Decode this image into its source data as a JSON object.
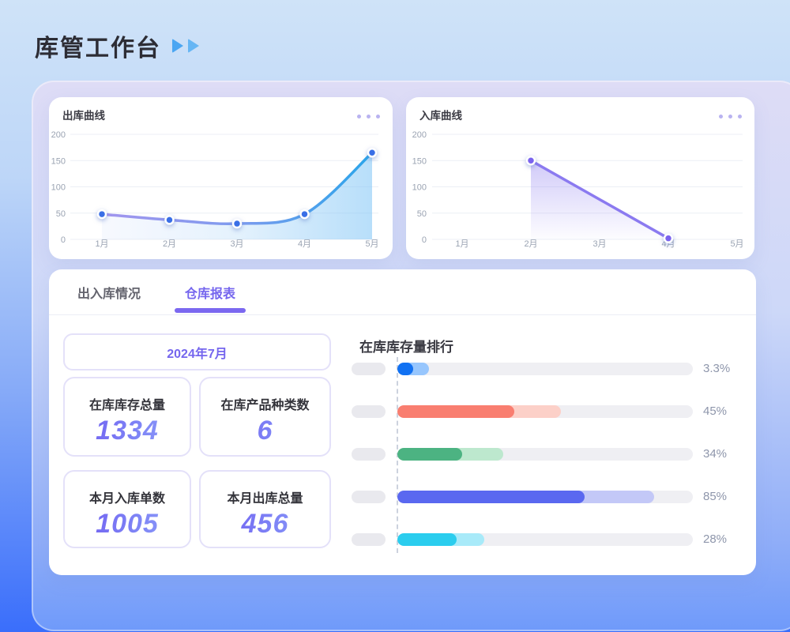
{
  "header": {
    "title": "库管工作台"
  },
  "tabs": [
    {
      "label": "出入库情况",
      "active": false
    },
    {
      "label": "仓库报表",
      "active": true
    }
  ],
  "summary": {
    "month_label": "2024年7月",
    "stats": [
      {
        "label": "在库库存总量",
        "value": "1334"
      },
      {
        "label": "在库产品种类数",
        "value": "6"
      },
      {
        "label": "本月入库单数",
        "value": "1005"
      },
      {
        "label": "本月出库总量",
        "value": "456"
      }
    ]
  },
  "colors": {
    "accent_purple": "#7b68f0",
    "accent_blue": "#4aa6f2",
    "page_gradient_top": "#cfe3f8",
    "page_gradient_bottom": "#3a6efb"
  },
  "chart_data": [
    {
      "type": "line",
      "title": "出库曲线",
      "x": [
        "1月",
        "2月",
        "3月",
        "4月",
        "5月"
      ],
      "values": [
        48,
        37,
        30,
        48,
        165
      ],
      "ylim": [
        0,
        200
      ],
      "yticks": [
        0,
        50,
        100,
        150,
        200
      ],
      "grid": true,
      "smooth": true,
      "legend": "none",
      "line_gradient": [
        "#a295ee",
        "#7e9bee",
        "#29a5ea"
      ],
      "dot_color": "#3a6fe6",
      "area_gradient": [
        "rgba(150,180,245,0.08)",
        "rgba(120,190,245,0.20)",
        "rgba(125,196,246,0.55)"
      ],
      "area_direction": "horizontal"
    },
    {
      "type": "line",
      "title": "入库曲线",
      "x": [
        "1月",
        "2月",
        "3月",
        "4月",
        "5月"
      ],
      "values": [
        null,
        150,
        null,
        2,
        null
      ],
      "ylim": [
        0,
        200
      ],
      "yticks": [
        0,
        50,
        100,
        150,
        200
      ],
      "grid": true,
      "smooth": false,
      "legend": "none",
      "line_color": "#8b7af0",
      "dot_color": "#7a63ee",
      "area_gradient": [
        "rgba(140,124,240,0.40)",
        "rgba(140,124,240,0.02)"
      ],
      "area_direction": "vertical"
    },
    {
      "type": "bar",
      "title": "在库库存量排行",
      "orientation": "horizontal",
      "value_labels": [
        "3.3%",
        "45%",
        "34%",
        "85%",
        "28%"
      ],
      "values": [
        3.3,
        45,
        34,
        85,
        28
      ],
      "bars": [
        {
          "color": "#1171f2",
          "light": "#97c6fd",
          "solid_pct": 5.3,
          "total_pct": 10.7
        },
        {
          "color": "#f97e70",
          "light": "#fcd0c8",
          "solid_pct": 39.6,
          "total_pct": 55.3
        },
        {
          "color": "#4cb382",
          "light": "#bde8ce",
          "solid_pct": 21.9,
          "total_pct": 35.8
        },
        {
          "color": "#5a68f0",
          "light": "#c3c8f7",
          "solid_pct": 63.4,
          "total_pct": 86.9
        },
        {
          "color": "#2bcdee",
          "light": "#a8eaf9",
          "solid_pct": 20.1,
          "total_pct": 29.4
        }
      ]
    }
  ]
}
